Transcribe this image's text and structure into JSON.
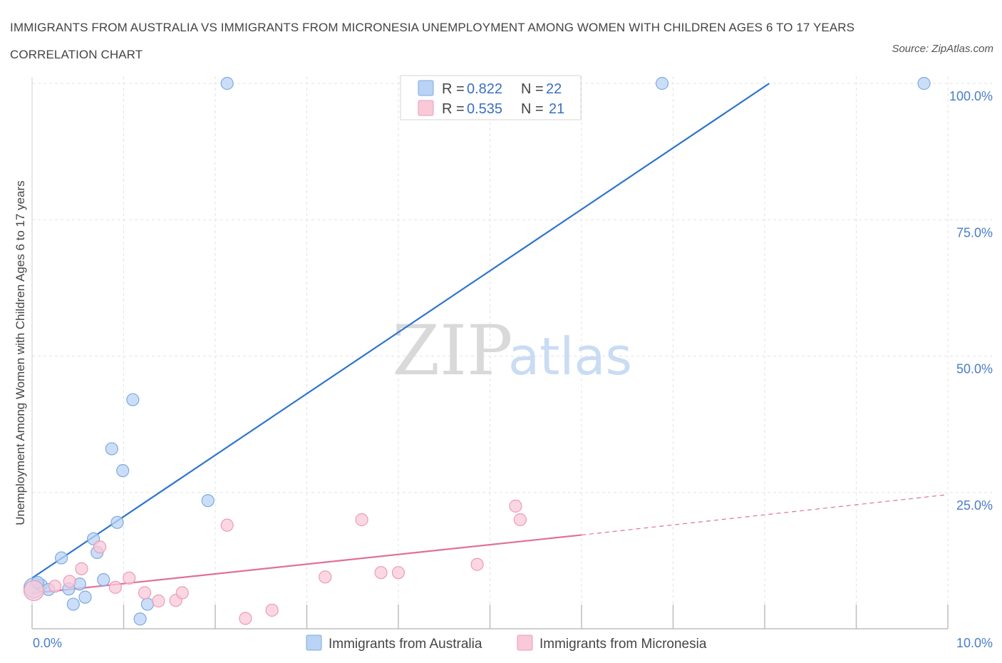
{
  "title": "IMMIGRANTS FROM AUSTRALIA VS IMMIGRANTS FROM MICRONESIA UNEMPLOYMENT AMONG WOMEN WITH CHILDREN AGES 6 TO 17 YEARS CORRELATION CHART",
  "source": "Source: ZipAtlas.com",
  "watermark": {
    "zip": "ZIP",
    "atlas": "atlas"
  },
  "colors": {
    "australia_fill": "#b9d3f5",
    "australia_stroke": "#7fa9e0",
    "australia_line": "#2e74cf",
    "micronesia_fill": "#f9c9d8",
    "micronesia_stroke": "#eb9bb6",
    "micronesia_line": "#e0709a",
    "grid": "#e3e3e3",
    "axis_label": "#4a7cc9"
  },
  "legend": {
    "rows": [
      {
        "r_label": "R = ",
        "r_value": "0.822",
        "n_label": "N = ",
        "n_value": "22"
      },
      {
        "r_label": "R = ",
        "r_value": "0.535",
        "n_label": "N = ",
        "n_value": "21"
      }
    ]
  },
  "chart_data": {
    "type": "scatter",
    "title": "IMMIGRANTS FROM AUSTRALIA VS IMMIGRANTS FROM MICRONESIA UNEMPLOYMENT AMONG WOMEN WITH CHILDREN AGES 6 TO 17 YEARS CORRELATION CHART",
    "xlabel": "",
    "ylabel": "Unemployment Among Women with Children Ages 6 to 17 years",
    "xlim": [
      0,
      10
    ],
    "ylim": [
      0,
      100
    ],
    "x_tick_labels": [
      "0.0%",
      "10.0%"
    ],
    "y_tick_labels": [
      "25.0%",
      "50.0%",
      "75.0%",
      "100.0%"
    ],
    "y_ticks": [
      25,
      50,
      75,
      100
    ],
    "legend_position": "top-center",
    "series": [
      {
        "name": "Immigrants from Australia",
        "points": [
          {
            "x": 0.02,
            "y": 7.5,
            "size": "large"
          },
          {
            "x": 0.1,
            "y": 8.0
          },
          {
            "x": 0.18,
            "y": 7.2
          },
          {
            "x": 0.32,
            "y": 13.0
          },
          {
            "x": 0.4,
            "y": 7.3
          },
          {
            "x": 0.45,
            "y": 4.5
          },
          {
            "x": 0.52,
            "y": 8.2
          },
          {
            "x": 0.58,
            "y": 5.8
          },
          {
            "x": 0.67,
            "y": 16.5
          },
          {
            "x": 0.71,
            "y": 14.0
          },
          {
            "x": 0.78,
            "y": 9.0
          },
          {
            "x": 0.87,
            "y": 33.0
          },
          {
            "x": 0.93,
            "y": 19.5
          },
          {
            "x": 0.99,
            "y": 29.0
          },
          {
            "x": 1.1,
            "y": 42.0
          },
          {
            "x": 1.18,
            "y": 1.8
          },
          {
            "x": 1.26,
            "y": 4.5
          },
          {
            "x": 1.92,
            "y": 23.5
          },
          {
            "x": 2.13,
            "y": 100.0
          },
          {
            "x": 6.88,
            "y": 100.0
          },
          {
            "x": 9.74,
            "y": 100.0
          },
          {
            "x": 0.06,
            "y": 8.5
          }
        ],
        "trend": {
          "x1": 0.0,
          "y1": 9.3,
          "x2": 8.05,
          "y2": 100.0
        }
      },
      {
        "name": "Immigrants from Micronesia",
        "points": [
          {
            "x": 0.02,
            "y": 7.0,
            "size": "large"
          },
          {
            "x": 0.25,
            "y": 7.8
          },
          {
            "x": 0.41,
            "y": 8.7
          },
          {
            "x": 0.54,
            "y": 11.0
          },
          {
            "x": 0.74,
            "y": 15.0
          },
          {
            "x": 0.91,
            "y": 7.6
          },
          {
            "x": 1.06,
            "y": 9.3
          },
          {
            "x": 1.23,
            "y": 6.6
          },
          {
            "x": 1.38,
            "y": 5.1
          },
          {
            "x": 1.57,
            "y": 5.2
          },
          {
            "x": 1.64,
            "y": 6.6
          },
          {
            "x": 2.13,
            "y": 19.0
          },
          {
            "x": 2.33,
            "y": 1.9
          },
          {
            "x": 2.62,
            "y": 3.4
          },
          {
            "x": 3.2,
            "y": 9.5
          },
          {
            "x": 3.6,
            "y": 20.0
          },
          {
            "x": 3.81,
            "y": 10.3
          },
          {
            "x": 4.0,
            "y": 10.3
          },
          {
            "x": 4.86,
            "y": 11.8
          },
          {
            "x": 5.28,
            "y": 22.5
          },
          {
            "x": 5.33,
            "y": 20.0
          }
        ],
        "trend": {
          "x1": 0.0,
          "y1": 6.5,
          "x2": 6.0,
          "y2": 17.2,
          "dash_to_x": 10.0,
          "dash_to_y": 24.6
        }
      }
    ]
  }
}
